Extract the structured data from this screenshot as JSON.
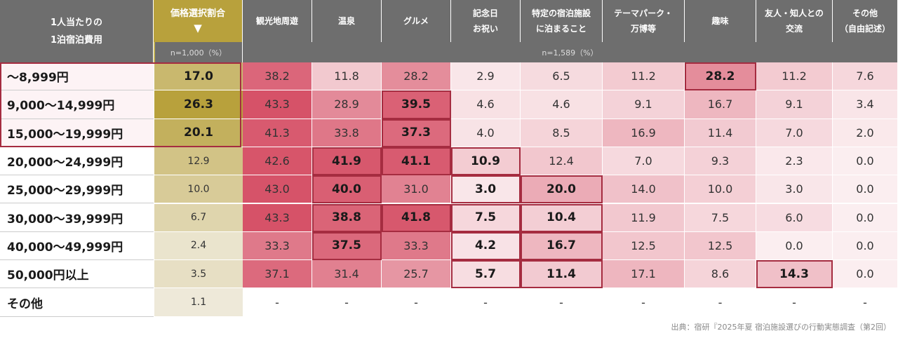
{
  "chart_data": {
    "type": "table",
    "row_header_title": "1人当たりの\n1泊宿泊費用",
    "price_column": {
      "label": "価格選択割合",
      "arrow": "▼",
      "sample": "n=1,000（%）"
    },
    "purpose_sample": "n=1,589（%）",
    "columns": [
      "観光地周遊",
      "温泉",
      "グルメ",
      "記念日\nお祝い",
      "特定の宿泊施設\nに泊まること",
      "テーマパーク・\n万博等",
      "趣味",
      "友人・知人との\n交流",
      "その他\n（自由記述）"
    ],
    "rows": [
      {
        "label": "～8,999円",
        "price": "17.0",
        "values": [
          "38.2",
          "11.8",
          "28.2",
          "2.9",
          "6.5",
          "11.2",
          "28.2",
          "11.2",
          "7.6"
        ]
      },
      {
        "label": "9,000～14,999円",
        "price": "26.3",
        "values": [
          "43.3",
          "28.9",
          "39.5",
          "4.6",
          "4.6",
          "9.1",
          "16.7",
          "9.1",
          "3.4"
        ]
      },
      {
        "label": "15,000～19,999円",
        "price": "20.1",
        "values": [
          "41.3",
          "33.8",
          "37.3",
          "4.0",
          "8.5",
          "16.9",
          "11.4",
          "7.0",
          "2.0"
        ]
      },
      {
        "label": "20,000～24,999円",
        "price": "12.9",
        "values": [
          "42.6",
          "41.9",
          "41.1",
          "10.9",
          "12.4",
          "7.0",
          "9.3",
          "2.3",
          "0.0"
        ]
      },
      {
        "label": "25,000～29,999円",
        "price": "10.0",
        "values": [
          "43.0",
          "40.0",
          "31.0",
          "3.0",
          "20.0",
          "14.0",
          "10.0",
          "3.0",
          "0.0"
        ]
      },
      {
        "label": "30,000～39,999円",
        "price": "6.7",
        "values": [
          "43.3",
          "38.8",
          "41.8",
          "7.5",
          "10.4",
          "11.9",
          "7.5",
          "6.0",
          "0.0"
        ]
      },
      {
        "label": "40,000～49,999円",
        "price": "2.4",
        "values": [
          "33.3",
          "37.5",
          "33.3",
          "4.2",
          "16.7",
          "12.5",
          "12.5",
          "0.0",
          "0.0"
        ]
      },
      {
        "label": "50,000円以上",
        "price": "3.5",
        "values": [
          "37.1",
          "31.4",
          "25.7",
          "5.7",
          "11.4",
          "17.1",
          "8.6",
          "14.3",
          "0.0"
        ]
      },
      {
        "label": "その他",
        "price": "1.1",
        "values": [
          "-",
          "-",
          "-",
          "-",
          "-",
          "-",
          "-",
          "-",
          "-"
        ]
      }
    ],
    "highlighted_rows": [
      0,
      1,
      2
    ],
    "boxed_cells": [
      [
        0,
        6
      ],
      [
        1,
        2
      ],
      [
        2,
        2
      ],
      [
        3,
        1
      ],
      [
        3,
        2
      ],
      [
        3,
        3
      ],
      [
        4,
        1
      ],
      [
        4,
        3
      ],
      [
        4,
        4
      ],
      [
        5,
        1
      ],
      [
        5,
        2
      ],
      [
        5,
        3
      ],
      [
        5,
        4
      ],
      [
        6,
        1
      ],
      [
        6,
        3
      ],
      [
        6,
        4
      ],
      [
        7,
        3
      ],
      [
        7,
        4
      ],
      [
        7,
        7
      ]
    ],
    "colors": {
      "header_bg": "#6e6e6e",
      "price_header_bg": "#b8a13c",
      "heat_low": "#fbeef0",
      "heat_high": "#d65268",
      "gold_low": "#f3efe6",
      "gold_high": "#b8a13c",
      "box_border": "#a52c40"
    }
  },
  "source": "出典：宿研『2025年夏 宿泊施設選びの行動実態調査（第2回）"
}
